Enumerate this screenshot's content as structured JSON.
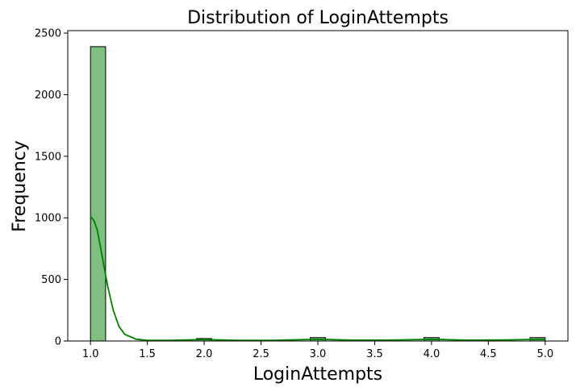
{
  "chart_data": {
    "type": "bar",
    "title": "Distribution of LoginAttempts",
    "xlabel": "LoginAttempts",
    "ylabel": "Frequency",
    "xlim": [
      0.8,
      5.2
    ],
    "ylim": [
      0,
      2520
    ],
    "x_ticks": [
      "1.0",
      "1.5",
      "2.0",
      "2.5",
      "3.0",
      "3.5",
      "4.0",
      "4.5",
      "5.0"
    ],
    "y_ticks": [
      "0",
      "500",
      "1000",
      "1500",
      "2000",
      "2500"
    ],
    "bins": [
      {
        "start": 1.0,
        "end": 1.133,
        "count": 2390
      },
      {
        "start": 1.933,
        "end": 2.067,
        "count": 20
      },
      {
        "start": 2.933,
        "end": 3.067,
        "count": 28
      },
      {
        "start": 3.933,
        "end": 4.067,
        "count": 28
      },
      {
        "start": 4.867,
        "end": 5.0,
        "count": 28
      }
    ],
    "kde": {
      "x": [
        1.0,
        1.03,
        1.06,
        1.1,
        1.15,
        1.2,
        1.25,
        1.3,
        1.4,
        1.5,
        1.7,
        1.9,
        2.0,
        2.1,
        2.3,
        2.6,
        2.9,
        3.0,
        3.1,
        3.3,
        3.6,
        3.9,
        4.0,
        4.1,
        4.3,
        4.6,
        4.9,
        5.0
      ],
      "y": [
        1010,
        980,
        900,
        700,
        450,
        250,
        120,
        55,
        15,
        5,
        5,
        10,
        13,
        10,
        6,
        6,
        12,
        14,
        12,
        7,
        7,
        12,
        14,
        12,
        7,
        8,
        13,
        14
      ]
    },
    "bar_color": "#7fbf7f",
    "kde_color": "#008000",
    "grid": false
  }
}
